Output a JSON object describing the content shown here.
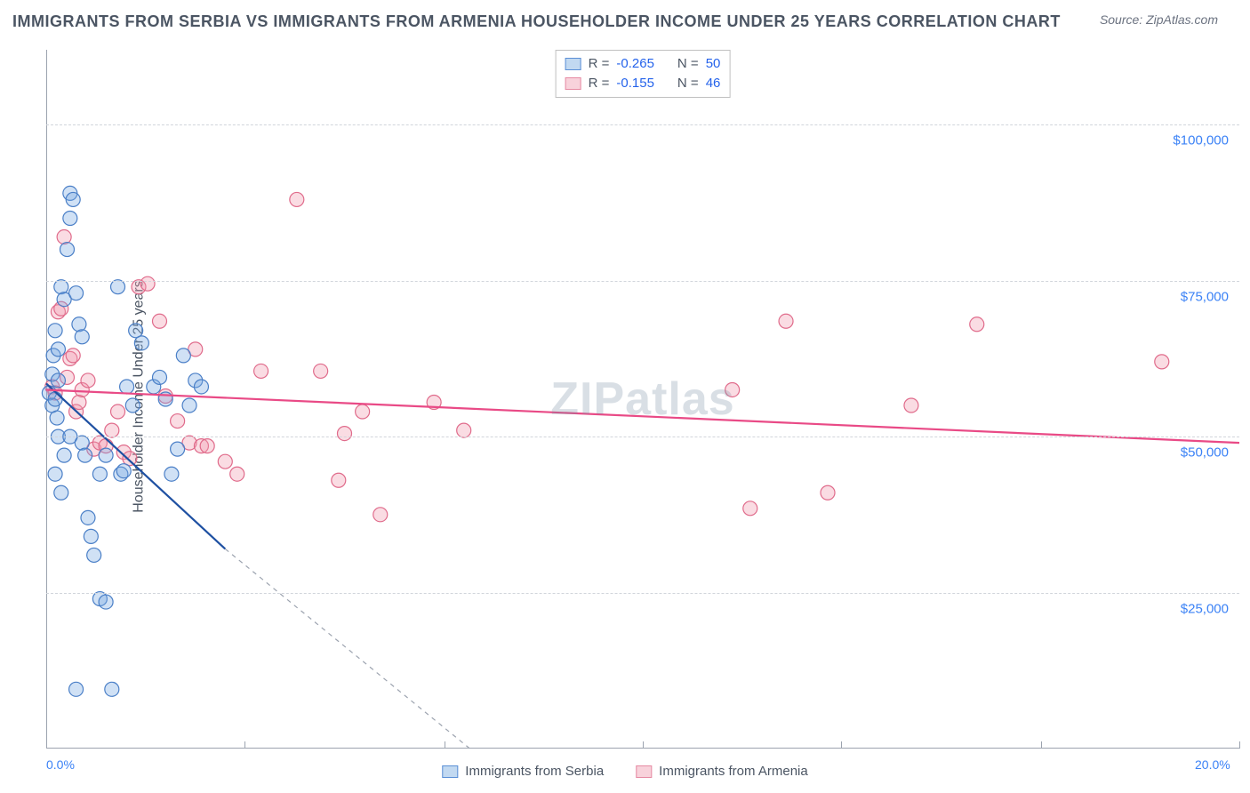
{
  "title": "IMMIGRANTS FROM SERBIA VS IMMIGRANTS FROM ARMENIA HOUSEHOLDER INCOME UNDER 25 YEARS CORRELATION CHART",
  "source_label": "Source: ",
  "source_value": "ZipAtlas.com",
  "ylabel": "Householder Income Under 25 years",
  "watermark": "ZIPatlas",
  "chart": {
    "type": "scatter",
    "background_color": "#ffffff",
    "grid_color": "#d1d5db",
    "axis_color": "#9ca3af",
    "tick_label_color": "#3b82f6",
    "xlim": [
      0.0,
      20.0
    ],
    "ylim": [
      0,
      112000
    ],
    "y_gridlines": [
      25000,
      50000,
      75000,
      100000
    ],
    "y_tick_labels": [
      "$25,000",
      "$50,000",
      "$75,000",
      "$100,000"
    ],
    "x_ticks": [
      0.0,
      3.33,
      6.67,
      10.0,
      13.33,
      16.67,
      20.0
    ],
    "x_tick_labels_shown": {
      "start": "0.0%",
      "end": "20.0%"
    },
    "marker_radius": 8,
    "marker_stroke_width": 1.2,
    "marker_fill_opacity": 0.35,
    "stats_box": {
      "rows": [
        {
          "series": "s1",
          "r_label": "R =",
          "r": "-0.265",
          "n_label": "N =",
          "n": "50"
        },
        {
          "series": "s2",
          "r_label": "R =",
          "r": "-0.155",
          "n_label": "N =",
          "n": "46"
        }
      ]
    },
    "legend": [
      {
        "series": "s1",
        "label": "Immigrants from Serbia"
      },
      {
        "series": "s2",
        "label": "Immigrants from Armenia"
      }
    ],
    "series": {
      "s1": {
        "name": "Immigrants from Serbia",
        "fill": "#78aae1",
        "stroke": "#4a7fc7",
        "trend": {
          "x1": 0.0,
          "y1": 58500,
          "x2": 3.0,
          "y2": 32000,
          "extend_dashed_to_x": 7.1,
          "extend_dashed_to_y": 0,
          "color": "#1e50a2",
          "width": 2.2,
          "dash_color": "#9ca3af"
        },
        "points": [
          [
            0.05,
            57000
          ],
          [
            0.1,
            60000
          ],
          [
            0.1,
            55000
          ],
          [
            0.12,
            63000
          ],
          [
            0.15,
            56000
          ],
          [
            0.15,
            67000
          ],
          [
            0.18,
            53000
          ],
          [
            0.2,
            59000
          ],
          [
            0.2,
            64000
          ],
          [
            0.25,
            74000
          ],
          [
            0.3,
            72000
          ],
          [
            0.35,
            80000
          ],
          [
            0.4,
            89000
          ],
          [
            0.45,
            88000
          ],
          [
            0.4,
            85000
          ],
          [
            0.5,
            73000
          ],
          [
            0.55,
            68000
          ],
          [
            0.6,
            66000
          ],
          [
            0.6,
            49000
          ],
          [
            0.65,
            47000
          ],
          [
            0.7,
            37000
          ],
          [
            0.75,
            34000
          ],
          [
            0.8,
            31000
          ],
          [
            0.9,
            24000
          ],
          [
            1.0,
            23500
          ],
          [
            0.5,
            9500
          ],
          [
            1.1,
            9500
          ],
          [
            0.9,
            44000
          ],
          [
            1.2,
            74000
          ],
          [
            1.0,
            47000
          ],
          [
            1.25,
            44000
          ],
          [
            1.3,
            44500
          ],
          [
            1.35,
            58000
          ],
          [
            1.45,
            55000
          ],
          [
            1.5,
            67000
          ],
          [
            1.6,
            65000
          ],
          [
            1.8,
            58000
          ],
          [
            1.9,
            59500
          ],
          [
            2.0,
            56000
          ],
          [
            2.1,
            44000
          ],
          [
            2.2,
            48000
          ],
          [
            2.3,
            63000
          ],
          [
            2.4,
            55000
          ],
          [
            2.5,
            59000
          ],
          [
            2.6,
            58000
          ],
          [
            0.2,
            50000
          ],
          [
            0.3,
            47000
          ],
          [
            0.4,
            50000
          ],
          [
            0.15,
            44000
          ],
          [
            0.25,
            41000
          ]
        ]
      },
      "s2": {
        "name": "Immigrants from Armenia",
        "fill": "#f09baf",
        "stroke": "#e06b8b",
        "trend": {
          "x1": 0.0,
          "y1": 57500,
          "x2": 20.0,
          "y2": 49000,
          "color": "#e94a86",
          "width": 2.2
        },
        "points": [
          [
            0.1,
            58000
          ],
          [
            0.15,
            57000
          ],
          [
            0.2,
            70000
          ],
          [
            0.25,
            70500
          ],
          [
            0.3,
            82000
          ],
          [
            0.35,
            59500
          ],
          [
            0.4,
            62500
          ],
          [
            0.45,
            63000
          ],
          [
            0.5,
            54000
          ],
          [
            0.55,
            55500
          ],
          [
            0.6,
            57500
          ],
          [
            0.7,
            59000
          ],
          [
            0.8,
            48000
          ],
          [
            0.9,
            49000
          ],
          [
            1.0,
            48500
          ],
          [
            1.1,
            51000
          ],
          [
            1.2,
            54000
          ],
          [
            1.3,
            47500
          ],
          [
            1.4,
            46500
          ],
          [
            1.55,
            74000
          ],
          [
            1.7,
            74500
          ],
          [
            1.9,
            68500
          ],
          [
            2.0,
            56500
          ],
          [
            2.2,
            52500
          ],
          [
            2.4,
            49000
          ],
          [
            2.5,
            64000
          ],
          [
            2.6,
            48500
          ],
          [
            2.7,
            48500
          ],
          [
            3.0,
            46000
          ],
          [
            3.2,
            44000
          ],
          [
            3.6,
            60500
          ],
          [
            4.2,
            88000
          ],
          [
            4.6,
            60500
          ],
          [
            4.9,
            43000
          ],
          [
            5.0,
            50500
          ],
          [
            5.3,
            54000
          ],
          [
            5.6,
            37500
          ],
          [
            6.5,
            55500
          ],
          [
            11.5,
            57500
          ],
          [
            11.8,
            38500
          ],
          [
            12.4,
            68500
          ],
          [
            13.1,
            41000
          ],
          [
            14.5,
            55000
          ],
          [
            15.6,
            68000
          ],
          [
            18.7,
            62000
          ],
          [
            7.0,
            51000
          ]
        ]
      }
    }
  }
}
